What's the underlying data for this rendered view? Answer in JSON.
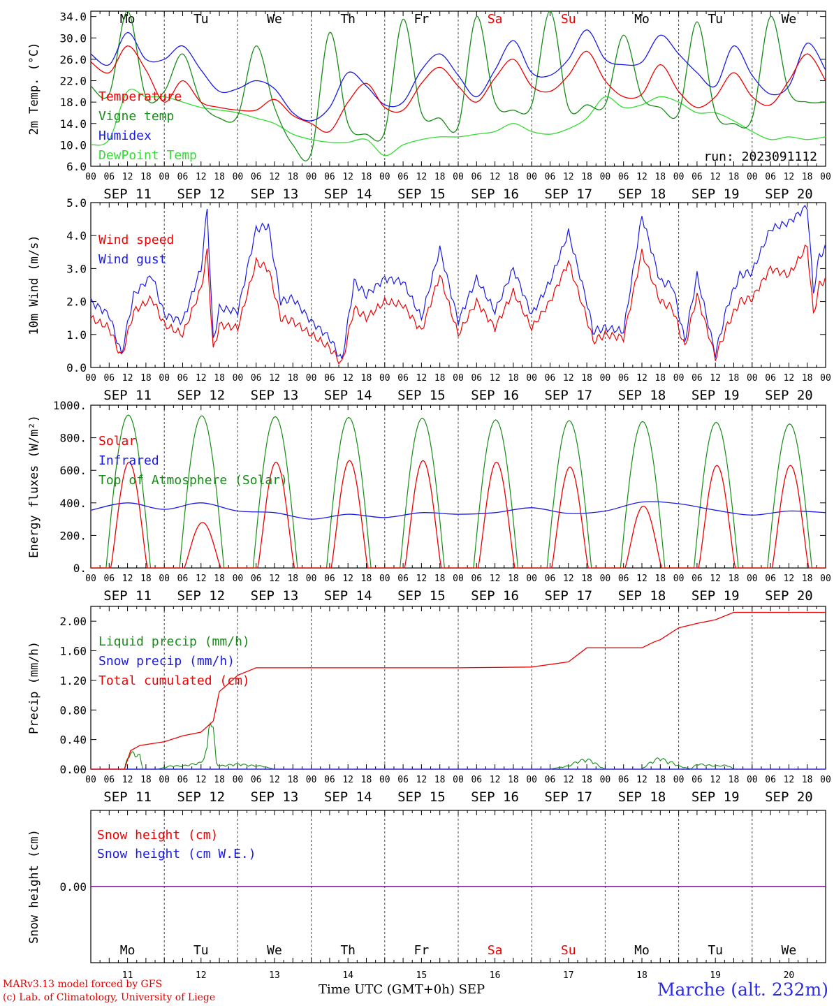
{
  "colors": {
    "red": "#ee0000",
    "green": "#168c16",
    "blue": "#1a1ae6",
    "lightgreen": "#33dd33",
    "purple": "#8000a0",
    "weekend": "#ee0000"
  },
  "footer": {
    "credit_line1": "MARv3.13 model forced by GFS",
    "credit_line2": "(c) Lab. of Climatology, University of Liege",
    "xaxis_title": "Time UTC (GMT+0h) SEP",
    "station": "Marche (alt. 232m)"
  },
  "chart_data": [
    {
      "type": "line",
      "id": "temp",
      "ylabel": "2m Temp. (°C)",
      "ylim": [
        6,
        35
      ],
      "yticks": [
        "34.0",
        "30.0",
        "26.0",
        "22.0",
        "18.0",
        "14.0",
        "10.0",
        "6.0"
      ],
      "ytick_values": [
        34,
        30,
        26,
        22,
        18,
        14,
        10,
        6
      ],
      "day_names": [
        "Mo",
        "Tu",
        "We",
        "Th",
        "Fr",
        "Sa",
        "Su",
        "Mo",
        "Tu",
        "We"
      ],
      "weekend_flags": [
        false,
        false,
        false,
        false,
        false,
        true,
        true,
        false,
        false,
        false
      ],
      "hour_ticks": [
        "00",
        "06",
        "12",
        "18"
      ],
      "date_labels": [
        "SEP 11",
        "SEP 12",
        "SEP 13",
        "SEP 14",
        "SEP 15",
        "SEP 16",
        "SEP 17",
        "SEP 18",
        "SEP 19",
        "SEP 20"
      ],
      "annotation": "run: 2023091112",
      "legend": [
        "Temperature",
        "Vigne temp",
        "Humidex",
        "DewPoint Temp"
      ],
      "series": [
        {
          "name": "Temperature",
          "color": "red",
          "x": [
            0,
            6,
            12,
            18,
            24,
            30,
            36,
            42,
            48,
            54,
            60,
            66,
            72,
            78,
            84,
            90,
            96,
            102,
            108,
            114,
            120,
            126,
            132,
            138,
            144,
            150,
            156,
            162,
            168,
            174,
            180,
            186,
            192,
            198,
            204,
            210,
            216,
            222,
            228,
            234,
            240
          ],
          "values": [
            25.5,
            23.5,
            28.5,
            24,
            18,
            22,
            18,
            17,
            16.5,
            16.5,
            18.5,
            15.5,
            14,
            12.5,
            18,
            21.5,
            17,
            16.5,
            21.5,
            24.5,
            21,
            18,
            22.5,
            26,
            21,
            20,
            23,
            27.5,
            22,
            19,
            19.5,
            25,
            20,
            17,
            19,
            23.5,
            19,
            17.5,
            22,
            27,
            22
          ]
        },
        {
          "name": "Vigne temp",
          "color": "green",
          "x": [
            0,
            6,
            12,
            18,
            24,
            30,
            36,
            42,
            48,
            54,
            60,
            66,
            72,
            78,
            84,
            90,
            96,
            102,
            108,
            114,
            120,
            126,
            132,
            138,
            144,
            150,
            156,
            162,
            168,
            174,
            180,
            186,
            192,
            198,
            204,
            210,
            216,
            222,
            228,
            234,
            240
          ],
          "values": [
            21,
            19.5,
            35,
            19,
            20,
            27,
            18,
            15,
            15.5,
            28.5,
            17,
            10,
            8.5,
            31,
            14,
            12,
            12.5,
            33.5,
            16,
            15,
            13.5,
            34,
            18,
            16.5,
            17.5,
            35,
            17,
            17.5,
            17.5,
            30.5,
            19,
            17,
            16,
            33,
            16,
            14,
            15,
            34,
            20,
            18,
            18
          ]
        },
        {
          "name": "Humidex",
          "color": "blue",
          "x": [
            0,
            6,
            12,
            18,
            24,
            30,
            36,
            42,
            48,
            54,
            60,
            66,
            72,
            78,
            84,
            90,
            96,
            102,
            108,
            114,
            120,
            126,
            132,
            138,
            144,
            150,
            156,
            162,
            168,
            174,
            180,
            186,
            192,
            198,
            204,
            210,
            216,
            222,
            228,
            234,
            240
          ],
          "values": [
            27,
            25,
            31,
            26,
            26,
            28.5,
            24,
            20,
            20.5,
            22,
            20.5,
            16,
            14.5,
            17,
            23.5,
            21,
            17.5,
            18,
            24,
            27,
            23,
            19,
            24,
            29.5,
            23.5,
            23,
            26,
            31.5,
            26,
            25,
            25.5,
            30.5,
            27,
            23.5,
            21,
            28.5,
            23,
            19.5,
            21,
            29,
            24
          ]
        },
        {
          "name": "DewPoint Temp",
          "color": "lightgreen",
          "x": [
            0,
            6,
            12,
            18,
            24,
            30,
            36,
            42,
            48,
            54,
            60,
            66,
            72,
            78,
            84,
            90,
            96,
            102,
            108,
            114,
            120,
            126,
            132,
            138,
            144,
            150,
            156,
            162,
            168,
            174,
            180,
            186,
            192,
            198,
            204,
            210,
            216,
            222,
            228,
            234,
            240
          ],
          "values": [
            10,
            11,
            20,
            19,
            19,
            18,
            17,
            16.5,
            16,
            15,
            14,
            12,
            11,
            10.5,
            10.5,
            11,
            8,
            10,
            11,
            11.5,
            11.5,
            12,
            12.5,
            14,
            12.5,
            12,
            13,
            15,
            19,
            17,
            17.5,
            19,
            18,
            16,
            16,
            14.5,
            12.5,
            11,
            11.5,
            11,
            11.5
          ]
        }
      ]
    },
    {
      "type": "line",
      "id": "wind",
      "ylabel": "10m Wind (m/s)",
      "ylim": [
        0,
        5
      ],
      "yticks": [
        "5.0",
        "4.0",
        "3.0",
        "2.0",
        "1.0",
        "0.0"
      ],
      "ytick_values": [
        5,
        4,
        3,
        2,
        1,
        0
      ],
      "hour_ticks": [
        "00",
        "06",
        "12",
        "18"
      ],
      "date_labels": [
        "SEP 11",
        "SEP 12",
        "SEP 13",
        "SEP 14",
        "SEP 15",
        "SEP 16",
        "SEP 17",
        "SEP 18",
        "SEP 19",
        "SEP 20"
      ],
      "legend": [
        "Wind speed",
        "Wind gust"
      ],
      "series": [
        {
          "name": "Wind speed",
          "color": "red",
          "x": [
            0,
            6,
            10,
            14,
            20,
            24,
            30,
            36,
            38,
            40,
            42,
            48,
            54,
            58,
            62,
            66,
            72,
            78,
            82,
            86,
            90,
            96,
            102,
            108,
            114,
            120,
            126,
            132,
            138,
            144,
            150,
            156,
            162,
            164,
            168,
            174,
            180,
            186,
            190,
            194,
            198,
            204,
            208,
            212,
            216,
            222,
            228,
            234,
            236,
            238,
            240
          ],
          "values": [
            1.5,
            1.2,
            0.3,
            1.7,
            2.1,
            1.3,
            1.0,
            2.4,
            3.5,
            0.5,
            1.3,
            1.2,
            3.2,
            3.0,
            1.5,
            1.4,
            1.0,
            0.6,
            0.1,
            1.8,
            1.5,
            2.0,
            1.9,
            1.1,
            2.8,
            1.0,
            2.0,
            1.2,
            2.3,
            1.2,
            2.0,
            3.2,
            1.5,
            0.8,
            1.0,
            0.9,
            3.5,
            2.0,
            1.8,
            0.6,
            2.2,
            0.3,
            1.3,
            2.0,
            2.1,
            3.0,
            2.8,
            3.7,
            1.6,
            2.5,
            2.7
          ]
        },
        {
          "name": "Wind gust",
          "color": "blue",
          "x": [
            0,
            6,
            10,
            14,
            20,
            24,
            30,
            36,
            38,
            40,
            42,
            48,
            54,
            58,
            62,
            66,
            72,
            78,
            82,
            86,
            90,
            96,
            102,
            108,
            114,
            120,
            126,
            132,
            138,
            144,
            150,
            156,
            162,
            164,
            168,
            174,
            180,
            186,
            190,
            194,
            198,
            204,
            208,
            212,
            216,
            222,
            228,
            234,
            236,
            238,
            240
          ],
          "values": [
            2.0,
            1.6,
            0.4,
            2.2,
            2.8,
            1.6,
            1.4,
            3.0,
            4.8,
            0.8,
            1.8,
            1.7,
            4.2,
            4.3,
            2.0,
            2.1,
            1.4,
            0.9,
            0.2,
            2.6,
            2.2,
            2.7,
            2.6,
            1.5,
            3.6,
            1.4,
            2.7,
            1.7,
            3.0,
            1.6,
            2.6,
            4.1,
            2.0,
            1.1,
            1.2,
            1.1,
            4.6,
            2.6,
            2.5,
            0.8,
            2.8,
            0.4,
            1.9,
            2.8,
            2.9,
            4.2,
            4.4,
            4.9,
            2.3,
            3.4,
            3.6
          ]
        }
      ]
    },
    {
      "type": "line",
      "id": "energy",
      "ylabel": "Energy fluxes (W/m²)",
      "ylim": [
        0,
        1000
      ],
      "yticks": [
        "1000.",
        "800.",
        "600.",
        "400.",
        "200.",
        "0."
      ],
      "ytick_values": [
        1000,
        800,
        600,
        400,
        200,
        0
      ],
      "hour_ticks": [
        "00",
        "06",
        "12",
        "18"
      ],
      "date_labels": [
        "SEP 11",
        "SEP 12",
        "SEP 13",
        "SEP 14",
        "SEP 15",
        "SEP 16",
        "SEP 17",
        "SEP 18",
        "SEP 19",
        "SEP 20"
      ],
      "legend": [
        "Solar",
        "Infrared",
        "Top of Atmosphere (Solar)"
      ],
      "toa_peaks": [
        940,
        935,
        930,
        925,
        920,
        910,
        905,
        900,
        895,
        885
      ],
      "solar_peaks": [
        650,
        280,
        650,
        660,
        660,
        650,
        620,
        380,
        630,
        630
      ],
      "series": [
        {
          "name": "Infrared",
          "color": "blue",
          "x": [
            0,
            12,
            24,
            36,
            48,
            60,
            72,
            84,
            96,
            108,
            120,
            132,
            144,
            156,
            168,
            180,
            192,
            204,
            216,
            228,
            240
          ],
          "values": [
            355,
            400,
            360,
            400,
            350,
            340,
            300,
            330,
            310,
            340,
            330,
            340,
            370,
            335,
            350,
            405,
            395,
            355,
            325,
            350,
            340
          ]
        }
      ]
    },
    {
      "type": "line",
      "id": "precip",
      "ylabel": "Precip (mm/h)",
      "ylim": [
        0,
        2.2
      ],
      "yticks": [
        "2.00",
        "1.60",
        "1.20",
        "0.80",
        "0.40",
        "0.00"
      ],
      "ytick_values": [
        2.0,
        1.6,
        1.2,
        0.8,
        0.4,
        0.0
      ],
      "hour_ticks": [
        "00",
        "06",
        "12",
        "18"
      ],
      "date_labels": [
        "SEP 11",
        "SEP 12",
        "SEP 13",
        "SEP 14",
        "SEP 15",
        "SEP 16",
        "SEP 17",
        "SEP 18",
        "SEP 19",
        "SEP 20"
      ],
      "legend": [
        "Liquid precip (mm/h)",
        "Snow precip (mm/h)",
        "Total cumulated (cm)"
      ],
      "series": [
        {
          "name": "Total cumulated (cm)",
          "color": "red",
          "x": [
            0,
            11,
            13,
            16,
            24,
            30,
            36,
            40,
            41,
            42,
            44,
            48,
            54,
            60,
            72,
            96,
            120,
            144,
            156,
            162,
            165,
            168,
            180,
            184,
            186,
            192,
            198,
            204,
            210,
            216,
            228,
            240
          ],
          "values": [
            0,
            0,
            0.25,
            0.32,
            0.37,
            0.45,
            0.5,
            0.65,
            0.85,
            1.05,
            1.12,
            1.27,
            1.37,
            1.37,
            1.37,
            1.37,
            1.37,
            1.38,
            1.45,
            1.64,
            1.64,
            1.64,
            1.64,
            1.72,
            1.75,
            1.91,
            1.97,
            2.02,
            2.12,
            2.12,
            2.12,
            2.12
          ]
        },
        {
          "name": "Liquid precip (mm/h)",
          "color": "green",
          "x": [
            0,
            11,
            12,
            14,
            16,
            17,
            22,
            26,
            30,
            36,
            38,
            39,
            40,
            41,
            42,
            48,
            54,
            56,
            58,
            60,
            120,
            150,
            156,
            159,
            162,
            164,
            166,
            168,
            180,
            182,
            186,
            188,
            190,
            192,
            196,
            198,
            204,
            208,
            210,
            240
          ],
          "values": [
            0,
            0,
            0.2,
            0.25,
            0.2,
            0,
            0,
            0.05,
            0.05,
            0.1,
            0.3,
            0.9,
            0.6,
            0.1,
            0.05,
            0.08,
            0.05,
            0.05,
            0.02,
            0,
            0,
            0,
            0.05,
            0.12,
            0.15,
            0.12,
            0.05,
            0,
            0,
            0.08,
            0.18,
            0.12,
            0.1,
            0.05,
            0,
            0.08,
            0.05,
            0.06,
            0,
            0
          ]
        }
      ]
    },
    {
      "type": "line",
      "id": "snow",
      "ylabel": "Snow height (cm)",
      "ylim": [
        -1,
        1
      ],
      "yticks": [
        "0.00"
      ],
      "ytick_values": [
        0
      ],
      "legend": [
        "Snow height (cm)",
        "Snow height (cm W.E.)"
      ],
      "day_names": [
        "Mo",
        "Tu",
        "We",
        "Th",
        "Fr",
        "Sa",
        "Su",
        "Mo",
        "Tu",
        "We"
      ],
      "weekend_flags": [
        false,
        false,
        false,
        false,
        false,
        true,
        true,
        false,
        false,
        false
      ],
      "day_numbers": [
        "11",
        "12",
        "13",
        "14",
        "15",
        "16",
        "17",
        "18",
        "19",
        "20"
      ],
      "series": [
        {
          "name": "Snow height (cm)",
          "color": "purple",
          "x": [
            0,
            240
          ],
          "values": [
            0,
            0
          ]
        }
      ]
    }
  ]
}
